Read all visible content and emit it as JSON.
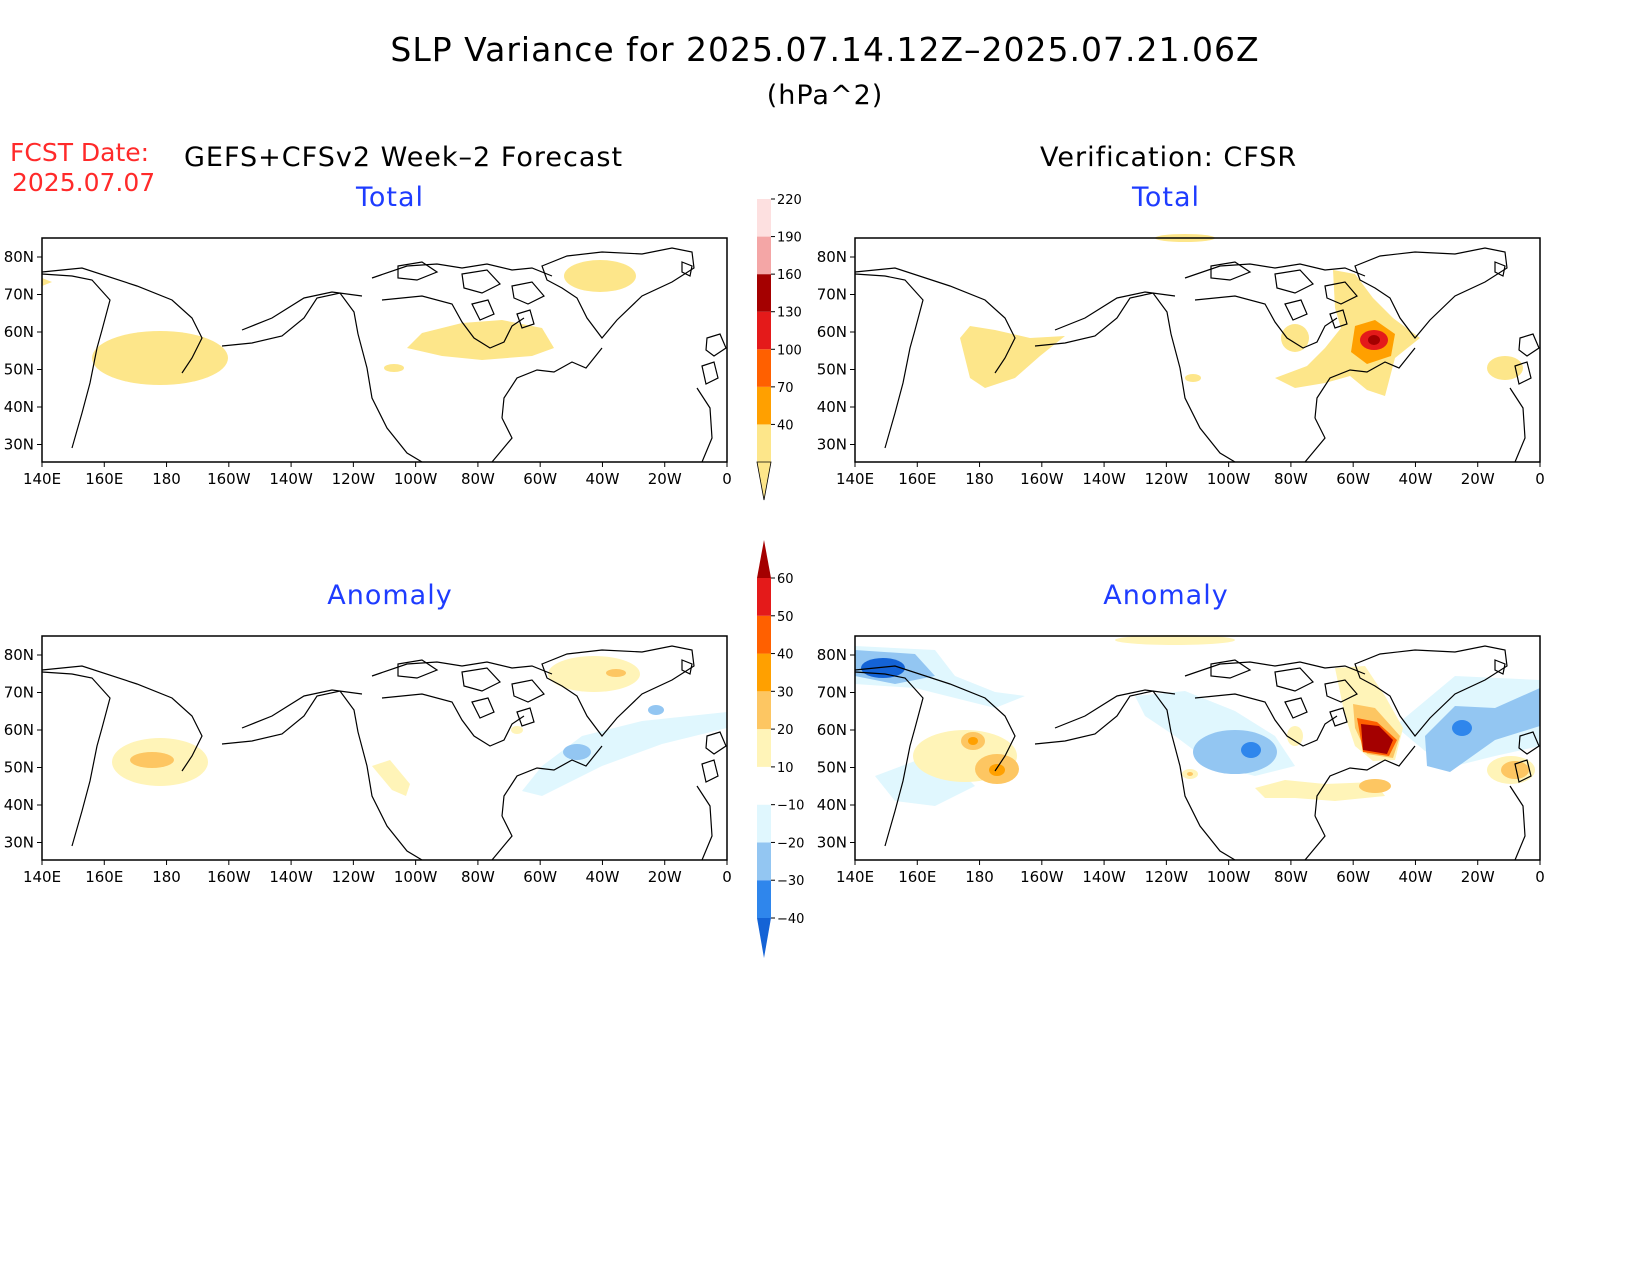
{
  "title": "SLP Variance for 2025.07.14.12Z–2025.07.21.06Z",
  "units": "(hPa^2)",
  "forecast": {
    "label": "FCST Date:",
    "date": "2025.07.07"
  },
  "left_header": "GEFS+CFSv2 Week–2 Forecast",
  "right_header": "Verification: CFSR",
  "panels": [
    {
      "id": "forecast-total",
      "title": "Total"
    },
    {
      "id": "verification-total",
      "title": "Total"
    },
    {
      "id": "forecast-anomaly",
      "title": "Anomaly"
    },
    {
      "id": "verification-anomaly",
      "title": "Anomaly"
    }
  ],
  "axes": {
    "lon_labels": [
      "140E",
      "160E",
      "180",
      "160W",
      "140W",
      "120W",
      "100W",
      "80W",
      "60W",
      "40W",
      "20W",
      "0"
    ],
    "lat_labels": [
      "80N",
      "70N",
      "60N",
      "50N",
      "40N",
      "30N"
    ]
  },
  "colorbar_total": {
    "levels": [
      "40",
      "70",
      "100",
      "130",
      "160",
      "190",
      "220"
    ],
    "colors": [
      "#fde68a",
      "#ffa000",
      "#ff6000",
      "#e41a1a",
      "#a40000",
      "#f4a6a6",
      "#fde0e0"
    ]
  },
  "colorbar_anomaly": {
    "levels": [
      "−40",
      "−30",
      "−20",
      "−10",
      "10",
      "20",
      "30",
      "40",
      "50",
      "60"
    ],
    "colors": [
      "#1463d6",
      "#2f86ec",
      "#93c6f2",
      "#e0f7fe",
      "#ffffff",
      "#fff4b8",
      "#fdc662",
      "#ffa000",
      "#ff6000",
      "#e41a1a",
      "#a40000"
    ]
  }
}
